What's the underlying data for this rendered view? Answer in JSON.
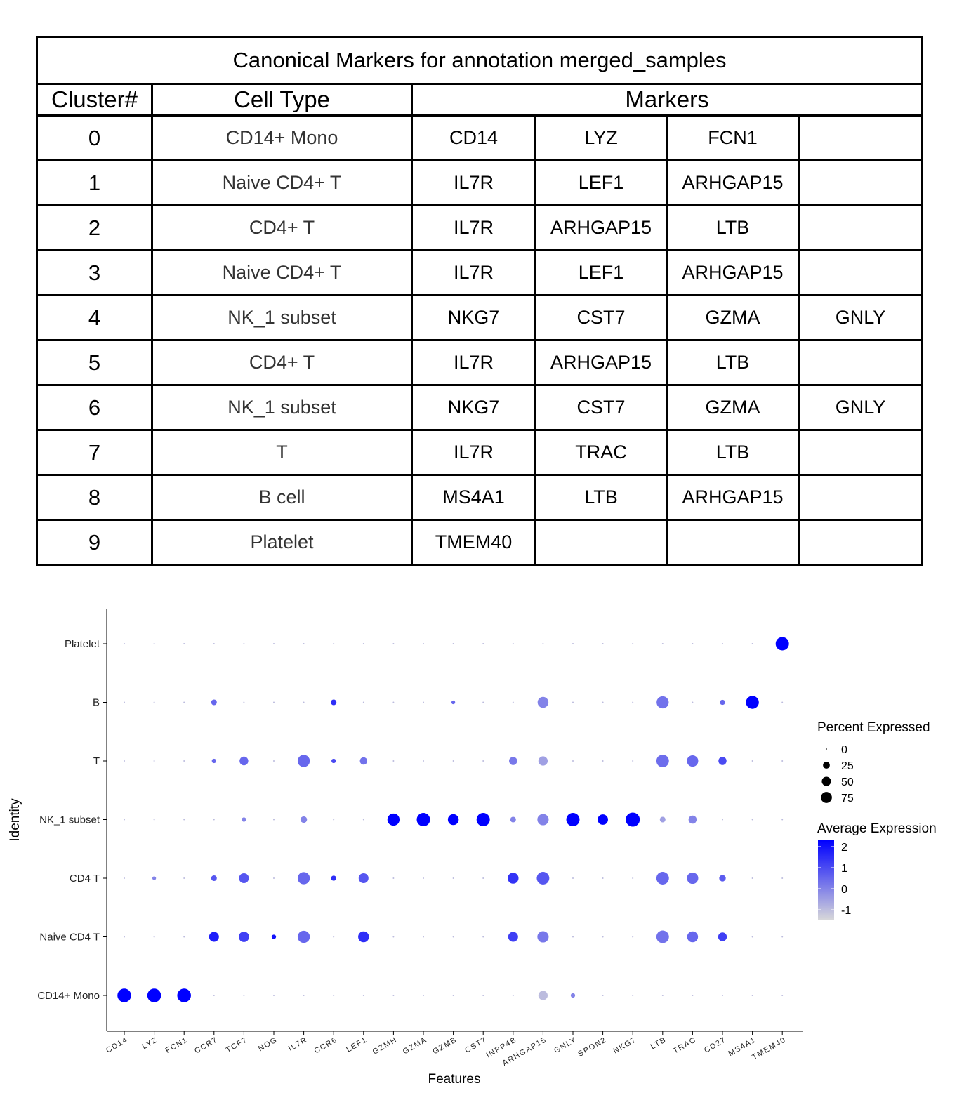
{
  "table": {
    "title": "Canonical Markers for annotation merged_samples",
    "headers": {
      "cluster": "Cluster#",
      "cell_type": "Cell Type",
      "markers": "Markers"
    },
    "rows": [
      {
        "cluster": "0",
        "cell_type": "CD14+ Mono",
        "markers": [
          "CD14",
          "LYZ",
          "FCN1",
          ""
        ]
      },
      {
        "cluster": "1",
        "cell_type": "Naive CD4+ T",
        "markers": [
          "IL7R",
          "LEF1",
          "ARHGAP15",
          ""
        ]
      },
      {
        "cluster": "2",
        "cell_type": "CD4+ T",
        "markers": [
          "IL7R",
          "ARHGAP15",
          "LTB",
          ""
        ]
      },
      {
        "cluster": "3",
        "cell_type": "Naive CD4+ T",
        "markers": [
          "IL7R",
          "LEF1",
          "ARHGAP15",
          ""
        ]
      },
      {
        "cluster": "4",
        "cell_type": "NK_1 subset",
        "markers": [
          "NKG7",
          "CST7",
          "GZMA",
          "GNLY"
        ]
      },
      {
        "cluster": "5",
        "cell_type": "CD4+ T",
        "markers": [
          "IL7R",
          "ARHGAP15",
          "LTB",
          ""
        ]
      },
      {
        "cluster": "6",
        "cell_type": "NK_1 subset",
        "markers": [
          "NKG7",
          "CST7",
          "GZMA",
          "GNLY"
        ]
      },
      {
        "cluster": "7",
        "cell_type": "T",
        "markers": [
          "IL7R",
          "TRAC",
          "LTB",
          ""
        ]
      },
      {
        "cluster": "8",
        "cell_type": "B  cell",
        "markers": [
          "MS4A1",
          "LTB",
          "ARHGAP15",
          ""
        ]
      },
      {
        "cluster": "9",
        "cell_type": "Platelet",
        "markers": [
          "TMEM40",
          "",
          "",
          ""
        ]
      }
    ]
  },
  "chart_data": {
    "type": "scatter",
    "subtype": "dotplot",
    "xlabel": "Features",
    "ylabel": "Identity",
    "features": [
      "CD14",
      "LYZ",
      "FCN1",
      "CCR7",
      "TCF7",
      "NOG",
      "IL7R",
      "CCR6",
      "LEF1",
      "GZMH",
      "GZMA",
      "GZMB",
      "CST7",
      "INPP4B",
      "ARHGAP15",
      "GNLY",
      "SPON2",
      "NKG7",
      "LTB",
      "TRAC",
      "CD27",
      "MS4A1",
      "TMEM40"
    ],
    "identities": [
      "CD14+ Mono",
      "Naive CD4 T",
      "CD4 T",
      "NK_1 subset",
      "T",
      "B",
      "Platelet"
    ],
    "pct_expressed": [
      [
        85,
        85,
        85,
        0,
        0,
        0,
        0,
        0,
        0,
        0,
        0,
        0,
        0,
        0,
        35,
        5,
        0,
        0,
        0,
        0,
        0,
        0,
        0
      ],
      [
        0,
        0,
        0,
        40,
        45,
        5,
        65,
        0,
        50,
        0,
        0,
        0,
        0,
        40,
        55,
        0,
        0,
        0,
        70,
        50,
        30,
        0,
        0
      ],
      [
        0,
        3,
        0,
        10,
        40,
        0,
        65,
        8,
        40,
        0,
        0,
        0,
        0,
        50,
        70,
        0,
        0,
        0,
        70,
        55,
        15,
        0,
        0
      ],
      [
        0,
        0,
        0,
        0,
        5,
        0,
        15,
        0,
        0,
        65,
        80,
        50,
        80,
        10,
        55,
        80,
        45,
        90,
        10,
        25,
        0,
        0,
        0
      ],
      [
        0,
        0,
        0,
        5,
        30,
        0,
        65,
        5,
        20,
        0,
        0,
        0,
        0,
        25,
        35,
        0,
        0,
        0,
        70,
        55,
        25,
        0,
        0
      ],
      [
        0,
        0,
        0,
        10,
        0,
        0,
        0,
        10,
        0,
        0,
        0,
        3,
        0,
        0,
        50,
        0,
        0,
        0,
        65,
        0,
        8,
        75,
        0
      ],
      [
        0,
        0,
        0,
        0,
        0,
        0,
        0,
        0,
        0,
        0,
        0,
        0,
        0,
        0,
        0,
        0,
        0,
        0,
        0,
        0,
        0,
        0,
        80
      ]
    ],
    "avg_expression": [
      [
        2.3,
        2.3,
        2.3,
        -1,
        -1,
        -1,
        -1,
        -1,
        -1,
        -1,
        -1,
        -1,
        -1,
        -1,
        -1,
        0,
        -1,
        -1,
        -1,
        -1,
        -1,
        -1,
        -1
      ],
      [
        -1,
        -1,
        -1,
        1.8,
        1.2,
        2,
        0.5,
        -1,
        1.5,
        -1,
        -1,
        -1,
        -1,
        1.2,
        0.2,
        -1,
        -1,
        -1,
        0.3,
        0.5,
        1.2,
        -1,
        -1
      ],
      [
        -1,
        0,
        -1,
        0.8,
        0.8,
        -1,
        0.5,
        1.5,
        0.8,
        -1,
        -1,
        -1,
        -1,
        1.4,
        0.8,
        -1,
        -1,
        -1,
        0.5,
        0.5,
        0.7,
        -1,
        -1
      ],
      [
        -1,
        -1,
        -1,
        -1,
        0,
        -1,
        0,
        -1,
        -1,
        2.3,
        2.3,
        2.3,
        2.3,
        0,
        0,
        2.3,
        2.3,
        2.3,
        -0.5,
        0,
        -1,
        -1,
        -1
      ],
      [
        -1,
        -1,
        -1,
        0.5,
        0.5,
        -1,
        0.5,
        1,
        0.3,
        -1,
        -1,
        -1,
        -1,
        0.2,
        -0.5,
        -1,
        -1,
        -1,
        0.4,
        0.5,
        1,
        -1,
        -1
      ],
      [
        -1,
        -1,
        -1,
        0.5,
        -1,
        -1,
        -1,
        1.5,
        -1,
        -1,
        -1,
        0.5,
        -1,
        -1,
        0,
        -1,
        -1,
        -1,
        0.3,
        -1,
        0.5,
        2.3,
        -1
      ],
      [
        -1,
        -1,
        -1,
        -1,
        -1,
        -1,
        -1,
        -1,
        -1,
        -1,
        -1,
        -1,
        -1,
        -1,
        -1,
        -1,
        -1,
        -1,
        -1,
        -1,
        -1,
        -1,
        2.3
      ]
    ],
    "legend_size": {
      "title": "Percent Expressed",
      "values": [
        0,
        25,
        50,
        75
      ]
    },
    "legend_color": {
      "title": "Average Expression",
      "ticks": [
        2,
        1,
        0,
        -1
      ],
      "range": [
        -1.5,
        2.3
      ],
      "low_color": "#d9d9d9",
      "high_color": "#0000ff"
    },
    "grid": false,
    "legend_position": "right"
  }
}
